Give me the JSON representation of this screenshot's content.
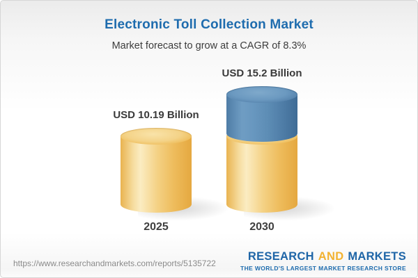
{
  "header": {
    "title": "Electronic Toll Collection Market",
    "subtitle": "Market forecast to grow at a CAGR of 8.3%"
  },
  "chart_data": {
    "type": "bar",
    "style": "3d-cylinder",
    "title": "Electronic Toll Collection Market",
    "subtitle": "Market forecast to grow at a CAGR of 8.3%",
    "unit": "USD Billion",
    "cagr_percent": 8.3,
    "categories": [
      "2025",
      "2030"
    ],
    "values": [
      10.19,
      15.2
    ],
    "value_labels": [
      "USD 10.19 Billion",
      "USD 15.2 Billion"
    ],
    "bars": [
      {
        "category": "2025",
        "total": 10.19,
        "label": "USD 10.19 Billion",
        "segments": [
          {
            "value": 10.19,
            "color": "gold"
          }
        ]
      },
      {
        "category": "2030",
        "total": 15.2,
        "label": "USD 15.2 Billion",
        "segments": [
          {
            "value": 10.19,
            "color": "gold"
          },
          {
            "value": 5.01,
            "color": "blue"
          }
        ]
      }
    ],
    "colors": {
      "gold": "#f0c46a",
      "blue": "#5e8fb8"
    },
    "ylim": [
      0,
      15.2
    ],
    "axes_visible": false,
    "grid": false,
    "legend": false
  },
  "footer": {
    "url": "https://www.researchandmarkets.com/reports/5135722",
    "logo": {
      "word1": "RESEARCH",
      "word2": "AND",
      "word3": "MARKETS",
      "tagline": "THE WORLD'S LARGEST MARKET RESEARCH STORE"
    }
  }
}
